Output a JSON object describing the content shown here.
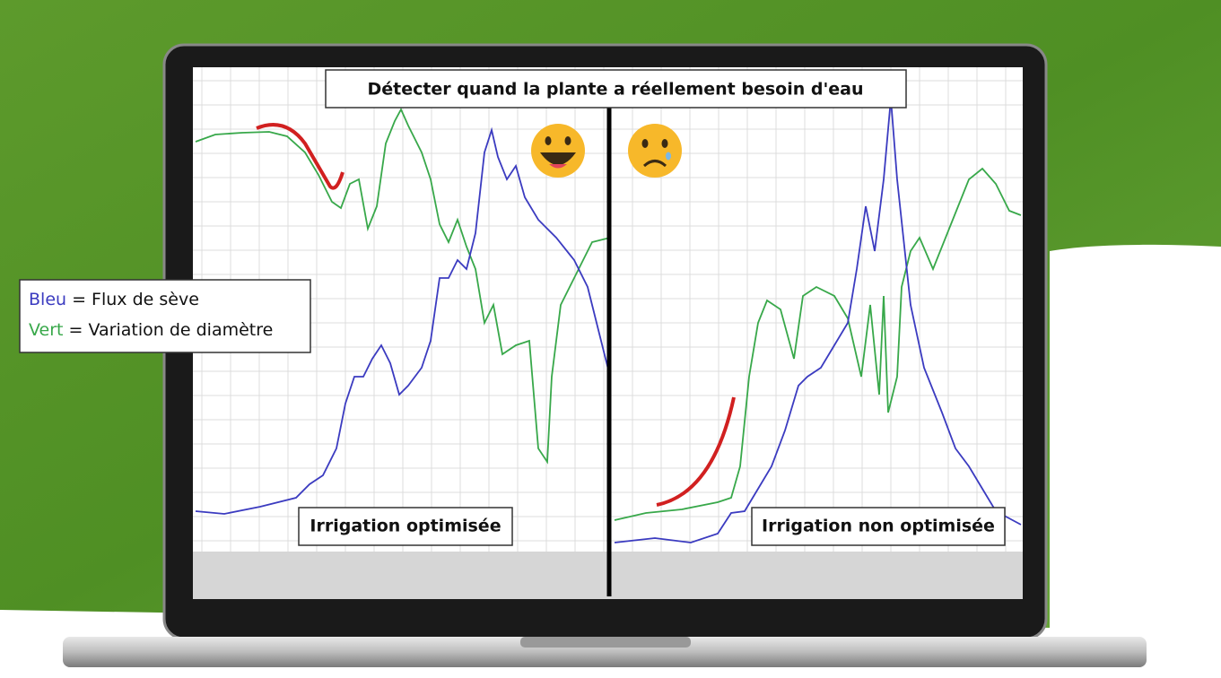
{
  "header": {
    "title": "Détecter quand la plante a réellement besoin d'eau"
  },
  "legend": {
    "items": [
      {
        "key": "Bleu",
        "text": "= Flux de sève"
      },
      {
        "key": "Vert",
        "text": "= Variation de diamètre"
      }
    ]
  },
  "panels": [
    {
      "label": "Irrigation optimisée"
    },
    {
      "label": "Irrigation non optimisée"
    }
  ]
}
